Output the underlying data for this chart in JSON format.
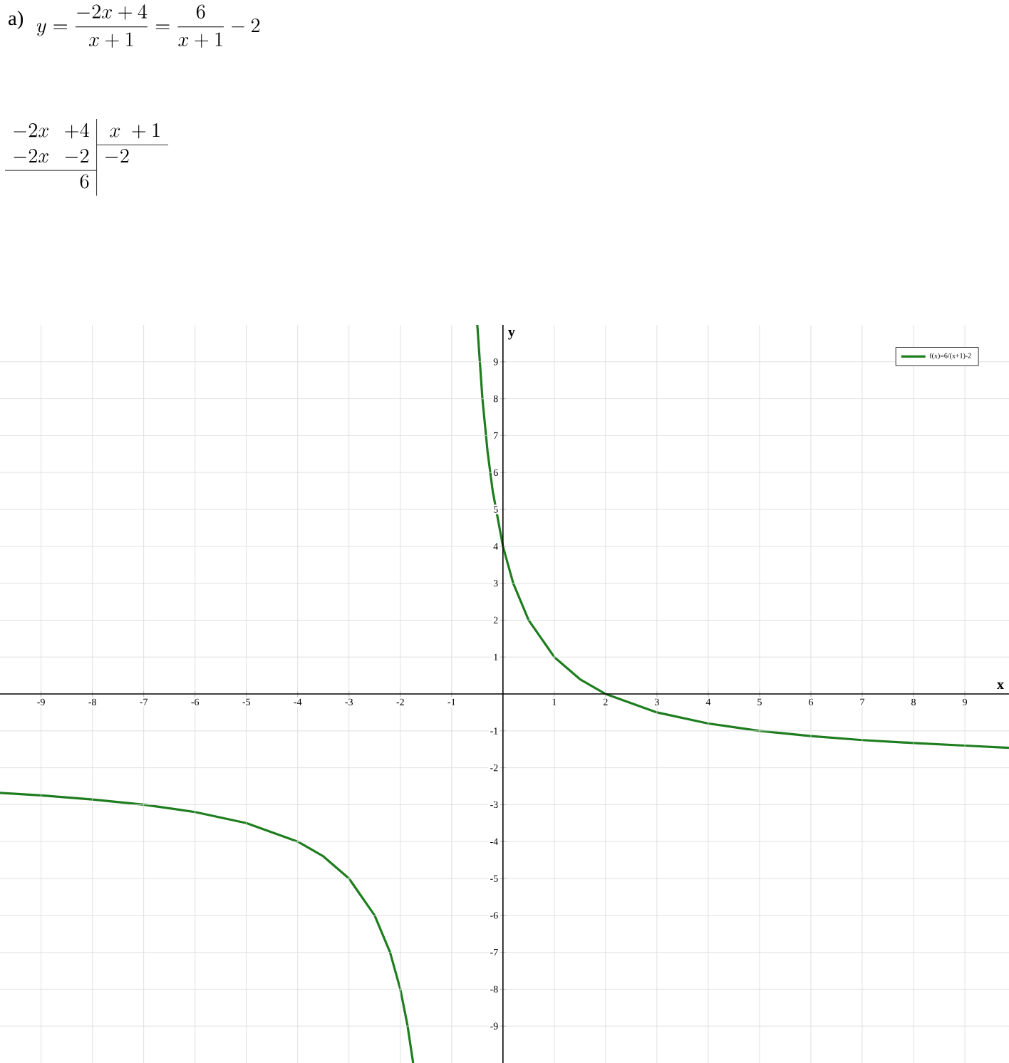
{
  "chart_data": {
    "type": "line",
    "annotations": [
      "a)",
      "y=\\frac{-2x+4}{x+1}=\\frac{6}{x+1}-2",
      "\\begin{array}{rr|l} -2x & +4 & \\;x\\;+1 \\\\ \\cline{3-3} -2x & -2 & -2 \\\\ \\cline{1-2} & 6 & \\end{array}"
    ],
    "xlabel": "x",
    "ylabel": "y",
    "xlim": [
      -9.8,
      9.86
    ],
    "ylim": [
      -10,
      10
    ],
    "xticks": [
      -9,
      -8,
      -7,
      -6,
      -5,
      -4,
      -3,
      -2,
      -1,
      1,
      2,
      3,
      4,
      5,
      6,
      7,
      8,
      9
    ],
    "yticks": [
      -9,
      -8,
      -7,
      -6,
      -5,
      -4,
      -3,
      -2,
      -1,
      1,
      2,
      3,
      4,
      5,
      6,
      7,
      8,
      9
    ],
    "grid": true,
    "legend": "top right",
    "marker": "none",
    "line_style": "solid",
    "series": [
      {
        "name": "f(x)=6/(x+1)-2",
        "color": "#1e7d1e",
        "x": [
          -9.8,
          -9,
          -8,
          -7,
          -6,
          -5,
          -4,
          -3.5,
          -3,
          -2.5,
          -2.2,
          -2,
          -1.86,
          -1.75,
          -1.1,
          -0.5,
          -0.4,
          -0.3,
          -0.2,
          0,
          0.2,
          0.5,
          1,
          1.5,
          2,
          3,
          4,
          5,
          6,
          7,
          8,
          9,
          9.86
        ],
        "values": [
          -2.68,
          -2.75,
          -2.86,
          -3,
          -3.2,
          -3.5,
          -4,
          -4.4,
          -5,
          -6,
          -7,
          -8,
          -8.98,
          -10,
          null,
          10,
          8,
          6.57,
          5.5,
          4,
          3,
          2,
          1,
          0.4,
          0,
          -0.5,
          -0.8,
          -1,
          -1.14,
          -1.25,
          -1.33,
          -1.4,
          -1.46
        ]
      }
    ]
  }
}
